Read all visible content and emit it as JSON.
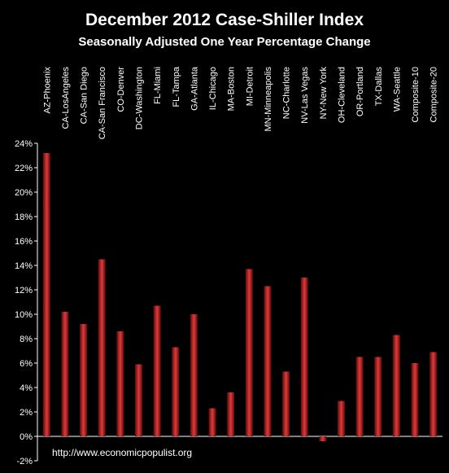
{
  "chart_data": {
    "type": "bar",
    "title": "December 2012 Case-Shiller Index",
    "subtitle": "Seasonally Adjusted One Year Percentage Change",
    "categories": [
      "AZ-Phoenix",
      "CA-LosAngeles",
      "CA-San Diego",
      "CA-San Francisco",
      "CO-Denver",
      "DC-Washington",
      "FL-Miami",
      "FL-Tampa",
      "GA-Atlanta",
      "IL-Chicago",
      "MA-Boston",
      "MI-Detroit",
      "MN-Minneapolis",
      "NC-Charlotte",
      "NV-Las Vegas",
      "NY-New York",
      "OH-Cleveland",
      "OR-Portland",
      "TX-Dallas",
      "WA-Seattle",
      "Composite-10",
      "Composite-20"
    ],
    "values": [
      23.2,
      10.2,
      9.2,
      14.5,
      8.6,
      5.9,
      10.7,
      7.3,
      10.0,
      2.3,
      3.6,
      13.7,
      12.3,
      5.3,
      13.0,
      -0.4,
      2.9,
      6.5,
      6.5,
      8.3,
      6.0,
      6.9
    ],
    "ylim": [
      -2,
      24
    ],
    "ytick_step": 2,
    "ytick_format": "percent",
    "grid": false,
    "legend": "none",
    "colors": {
      "background": "#000000",
      "plot_background": "#000000",
      "bar_dark": "#5a0a0a",
      "bar_light": "#e03a3a",
      "axis": "#ffffff",
      "text": "#ffffff"
    }
  },
  "credit": "http://www.economicpopulist.org"
}
